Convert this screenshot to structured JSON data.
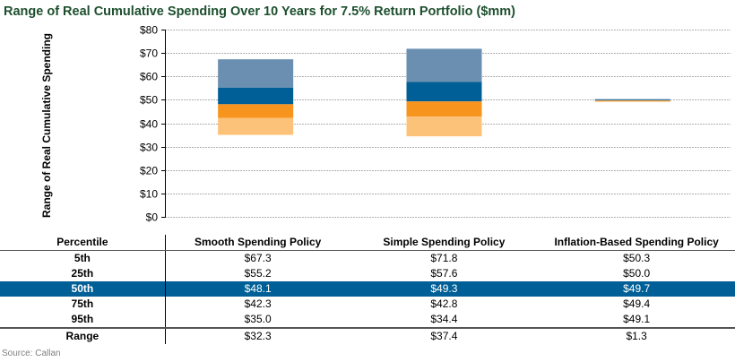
{
  "title": "Range of Real Cumulative Spending Over 10 Years for 7.5% Return Portfolio ($mm)",
  "source": "Source: Callan",
  "colors": {
    "title": "#1d4f2e",
    "p5_p25": "#6a8fb0",
    "p25_p50": "#005f96",
    "p50_p75": "#f7941d",
    "p75_p95": "#fdc27a",
    "highlight_row": "#005f96",
    "grid": "#b0b0b0"
  },
  "chart_data": {
    "type": "bar",
    "subtype": "floating-stacked-range",
    "title": "Range of Real Cumulative Spending Over 10 Years for 7.5% Return Portfolio ($mm)",
    "ylabel": "Range of Real Cumulative Spending",
    "xlabel": "",
    "ylim": [
      0,
      80
    ],
    "yticks": [
      0,
      10,
      20,
      30,
      40,
      50,
      60,
      70,
      80
    ],
    "ytick_labels": [
      "$0",
      "$10",
      "$20",
      "$30",
      "$40",
      "$50",
      "$60",
      "$70",
      "$80"
    ],
    "grid": true,
    "legend": "none",
    "categories": [
      "Smooth Spending Policy",
      "Simple Spending Policy",
      "Inflation-Based Spending Policy"
    ],
    "series": [
      {
        "name": "5th",
        "values": [
          67.3,
          71.8,
          50.3
        ]
      },
      {
        "name": "25th",
        "values": [
          55.2,
          57.6,
          50.0
        ]
      },
      {
        "name": "50th",
        "values": [
          48.1,
          49.3,
          49.7
        ]
      },
      {
        "name": "75th",
        "values": [
          42.3,
          42.8,
          49.4
        ]
      },
      {
        "name": "95th",
        "values": [
          35.0,
          34.4,
          49.1
        ]
      }
    ],
    "segments": [
      {
        "name": "5th-25th",
        "color_key": "p5_p25"
      },
      {
        "name": "25th-50th",
        "color_key": "p25_p50"
      },
      {
        "name": "50th-75th",
        "color_key": "p50_p75"
      },
      {
        "name": "75th-95th",
        "color_key": "p75_p95"
      }
    ]
  },
  "table": {
    "headers": [
      "Percentile",
      "Smooth Spending Policy",
      "Simple Spending Policy",
      "Inflation-Based Spending Policy"
    ],
    "rows": [
      {
        "label": "5th",
        "values": [
          "$67.3",
          "$71.8",
          "$50.3"
        ],
        "highlight": false
      },
      {
        "label": "25th",
        "values": [
          "$55.2",
          "$57.6",
          "$50.0"
        ],
        "highlight": false
      },
      {
        "label": "50th",
        "values": [
          "$48.1",
          "$49.3",
          "$49.7"
        ],
        "highlight": true
      },
      {
        "label": "75th",
        "values": [
          "$42.3",
          "$42.8",
          "$49.4"
        ],
        "highlight": false
      },
      {
        "label": "95th",
        "values": [
          "$35.0",
          "$34.4",
          "$49.1"
        ],
        "highlight": false
      }
    ],
    "range_row": {
      "label": "Range",
      "values": [
        "$32.3",
        "$37.4",
        "$1.3"
      ]
    }
  }
}
